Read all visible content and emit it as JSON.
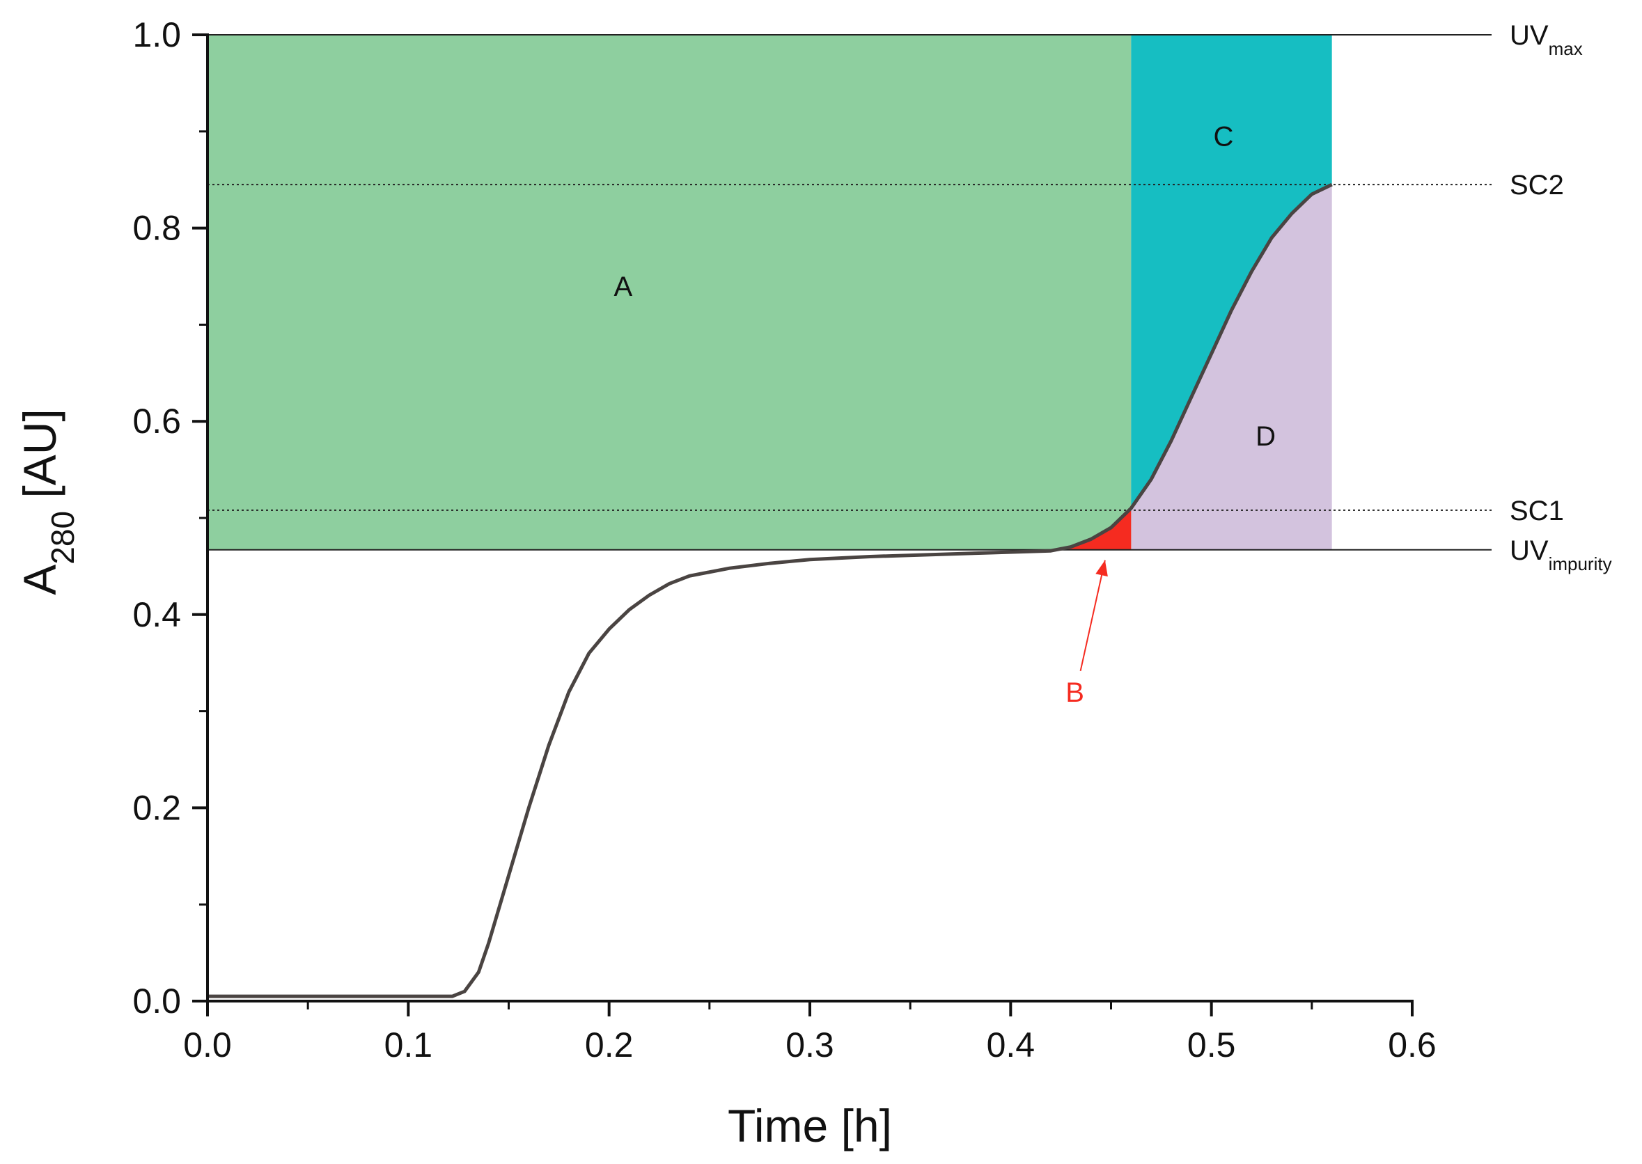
{
  "chart_data": {
    "type": "area",
    "xlabel": "Time [h]",
    "ylabel": {
      "main": "A",
      "sub": "280",
      "rest": " [AU]"
    },
    "xlim": [
      0,
      0.6
    ],
    "ylim": [
      0,
      1.0
    ],
    "x_ticks": [
      0,
      0.1,
      0.2,
      0.3,
      0.4,
      0.5,
      0.6
    ],
    "x_tick_labels": [
      "0.0",
      "0.1",
      "0.2",
      "0.3",
      "0.4",
      "0.5",
      "0.6"
    ],
    "y_ticks": [
      0,
      0.2,
      0.4,
      0.6,
      0.8,
      1.0
    ],
    "y_tick_labels": [
      "0.0",
      "0.2",
      "0.4",
      "0.6",
      "0.8",
      "1.0"
    ],
    "x_minor_ticks": [
      0.05,
      0.15,
      0.25,
      0.35,
      0.45,
      0.55
    ],
    "y_minor_ticks": [
      0.1,
      0.3,
      0.5,
      0.7,
      0.9
    ],
    "grid": false,
    "series": [
      {
        "color": "#4a4442",
        "x": [
          0,
          0.05,
          0.1,
          0.122,
          0.128,
          0.135,
          0.14,
          0.15,
          0.16,
          0.17,
          0.18,
          0.19,
          0.2,
          0.21,
          0.22,
          0.23,
          0.24,
          0.26,
          0.28,
          0.3,
          0.33,
          0.36,
          0.39,
          0.42,
          0.43,
          0.44,
          0.45,
          0.46,
          0.47,
          0.48,
          0.49,
          0.5,
          0.51,
          0.52,
          0.53,
          0.54,
          0.55,
          0.56
        ],
        "y": [
          0.005,
          0.005,
          0.005,
          0.005,
          0.01,
          0.03,
          0.06,
          0.13,
          0.2,
          0.265,
          0.32,
          0.36,
          0.385,
          0.405,
          0.42,
          0.432,
          0.44,
          0.448,
          0.453,
          0.457,
          0.46,
          0.462,
          0.464,
          0.466,
          0.47,
          0.478,
          0.49,
          0.51,
          0.54,
          0.58,
          0.625,
          0.67,
          0.715,
          0.755,
          0.79,
          0.815,
          0.835,
          0.845
        ]
      }
    ],
    "reference_lines": [
      {
        "key": "uv_max",
        "y": 1.0,
        "style": "solid"
      },
      {
        "key": "sc2",
        "y": 0.845,
        "style": "dotted"
      },
      {
        "key": "sc1",
        "y": 0.508,
        "style": "dotted"
      },
      {
        "key": "uv_impurity",
        "y": 0.467,
        "style": "solid"
      }
    ],
    "regions": {
      "A": {
        "x_from": 0,
        "x_to": 0.46,
        "color": "#8ecf9f"
      },
      "B": {
        "x_from": 0.42,
        "x_to": 0.46,
        "color": "#f52b20"
      },
      "C": {
        "x_from": 0.46,
        "x_to": 0.56,
        "color": "#16bec2"
      },
      "D": {
        "x_from": 0.46,
        "x_to": 0.56,
        "color": "#d3c3de"
      }
    },
    "ref_labels": {
      "uv_max": {
        "main": "UV",
        "sub": "max"
      },
      "sc2": {
        "main": "SC2",
        "sub": ""
      },
      "sc1": {
        "main": "SC1",
        "sub": ""
      },
      "uv_impurity": {
        "main": "UV",
        "sub": "impurity"
      }
    },
    "annotations": [
      {
        "key": "A",
        "text": "A",
        "x": 0.207,
        "y": 0.74,
        "color": "#111111"
      },
      {
        "key": "C",
        "text": "C",
        "x": 0.506,
        "y": 0.895,
        "color": "#111111"
      },
      {
        "key": "D",
        "text": "D",
        "x": 0.527,
        "y": 0.585,
        "color": "#111111"
      },
      {
        "key": "B",
        "text": "B",
        "x": 0.432,
        "y": 0.32,
        "color": "#f52b20",
        "arrow_to": [
          0.447,
          0.462
        ]
      }
    ]
  }
}
